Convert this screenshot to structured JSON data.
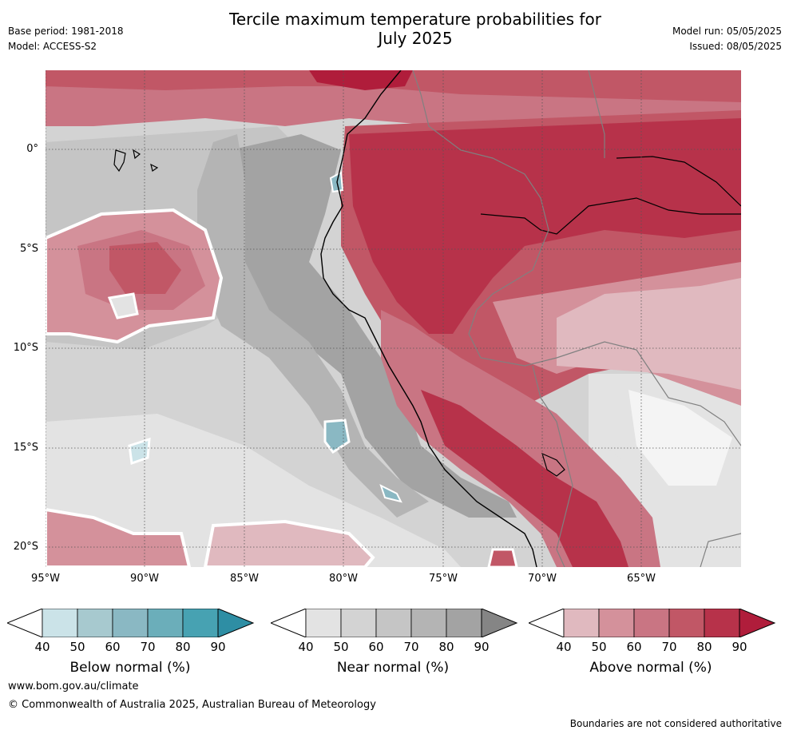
{
  "header": {
    "title_line1": "Tercile maximum temperature probabilities for",
    "title_line2": "July 2025",
    "base_period": "Base period: 1981-2018",
    "model": "Model: ACCESS-S2",
    "model_run": "Model run: 05/05/2025",
    "issued": "Issued: 08/05/2025"
  },
  "map": {
    "lat_labels": [
      "0°",
      "5°S",
      "10°S",
      "15°S",
      "20°S"
    ],
    "lon_labels": [
      "95°W",
      "90°W",
      "85°W",
      "80°W",
      "75°W",
      "70°W",
      "65°W"
    ]
  },
  "legends": [
    {
      "label": "Below normal (%)",
      "ticks": [
        "40",
        "50",
        "60",
        "70",
        "80",
        "90"
      ],
      "colors": [
        "#ffffff",
        "#cbe3e8",
        "#a7c9cf",
        "#8ab8c3",
        "#6baeba",
        "#47a2b2",
        "#2e8ea4"
      ]
    },
    {
      "label": "Near normal (%)",
      "ticks": [
        "40",
        "50",
        "60",
        "70",
        "80",
        "90"
      ],
      "colors": [
        "#ffffff",
        "#e3e3e3",
        "#d3d3d3",
        "#c5c5c5",
        "#b4b4b4",
        "#a3a3a3",
        "#858585"
      ]
    },
    {
      "label": "Above normal (%)",
      "ticks": [
        "40",
        "50",
        "60",
        "70",
        "80",
        "90"
      ],
      "colors": [
        "#ffffff",
        "#e0b9bf",
        "#d4919b",
        "#c97583",
        "#c15766",
        "#b7324a",
        "#b01d3b"
      ]
    }
  ],
  "footer": {
    "url": "www.bom.gov.au/climate",
    "copyright": "© Commonwealth of Australia 2025, Australian Bureau of Meteorology",
    "disclaimer": "Boundaries are not considered authoritative"
  }
}
